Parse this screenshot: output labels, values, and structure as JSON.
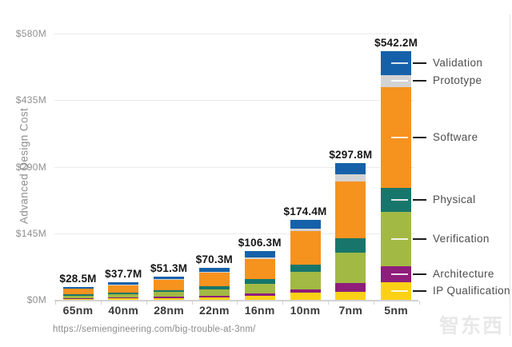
{
  "axis_y_title": "Advanced Design Cost",
  "source_url": "https://semiengineering.com/big-trouble-at-3nm/",
  "watermark_text": "智东西",
  "chart_data": {
    "type": "bar",
    "stacked": true,
    "title": "",
    "xlabel": "",
    "ylabel": "Advanced Design Cost",
    "ylim": [
      0,
      580
    ],
    "grid": "horizontal dotted",
    "legend_position": "right",
    "categories": [
      "65nm",
      "40nm",
      "28nm",
      "22nm",
      "16nm",
      "10nm",
      "7nm",
      "5nm"
    ],
    "totals": [
      28.5,
      37.7,
      51.3,
      70.3,
      106.3,
      174.4,
      297.8,
      542.2
    ],
    "total_labels": [
      "$28.5M",
      "$37.7M",
      "$51.3M",
      "$70.3M",
      "$106.3M",
      "$174.4M",
      "$297.8M",
      "$542.2M"
    ],
    "yticks": [
      {
        "label": "$0M",
        "value": 0
      },
      {
        "label": "$145M",
        "value": 145
      },
      {
        "label": "$290M",
        "value": 290
      },
      {
        "label": "$435M",
        "value": 435
      },
      {
        "label": "$580M",
        "value": 580
      }
    ],
    "series_bottom_to_top": [
      {
        "name": "IP Qualification",
        "color": "#fbd116",
        "values": [
          2.5,
          3.0,
          4.0,
          5.5,
          9.0,
          14.9,
          18.0,
          39.0
        ]
      },
      {
        "name": "Architecture",
        "color": "#8e1d7b",
        "values": [
          1.5,
          2.0,
          2.8,
          3.8,
          5.8,
          7.0,
          18.0,
          33.5
        ]
      },
      {
        "name": "Verification",
        "color": "#a2b944",
        "values": [
          5.5,
          7.5,
          10.0,
          14.0,
          20.0,
          38.5,
          66.0,
          119.0
        ]
      },
      {
        "name": "Physical",
        "color": "#17766b",
        "values": [
          2.5,
          3.2,
          4.5,
          6.0,
          11.0,
          17.0,
          33.0,
          53.0
        ]
      },
      {
        "name": "Software",
        "color": "#f6921e",
        "values": [
          12.0,
          16.0,
          22.0,
          30.0,
          43.0,
          72.5,
          122.3,
          219.7
        ]
      },
      {
        "name": "Prototype",
        "color": "#d3d3d3",
        "values": [
          1.0,
          1.5,
          2.0,
          2.5,
          4.0,
          5.0,
          16.0,
          26.0
        ]
      },
      {
        "name": "Validation",
        "color": "#1561a9",
        "values": [
          3.5,
          4.5,
          6.0,
          8.5,
          13.5,
          19.5,
          24.5,
          52.0
        ]
      }
    ],
    "legend_top_to_bottom": [
      "Validation",
      "Prototype",
      "Software",
      "Physical",
      "Verification",
      "Architecture",
      "IP Qualification"
    ]
  }
}
